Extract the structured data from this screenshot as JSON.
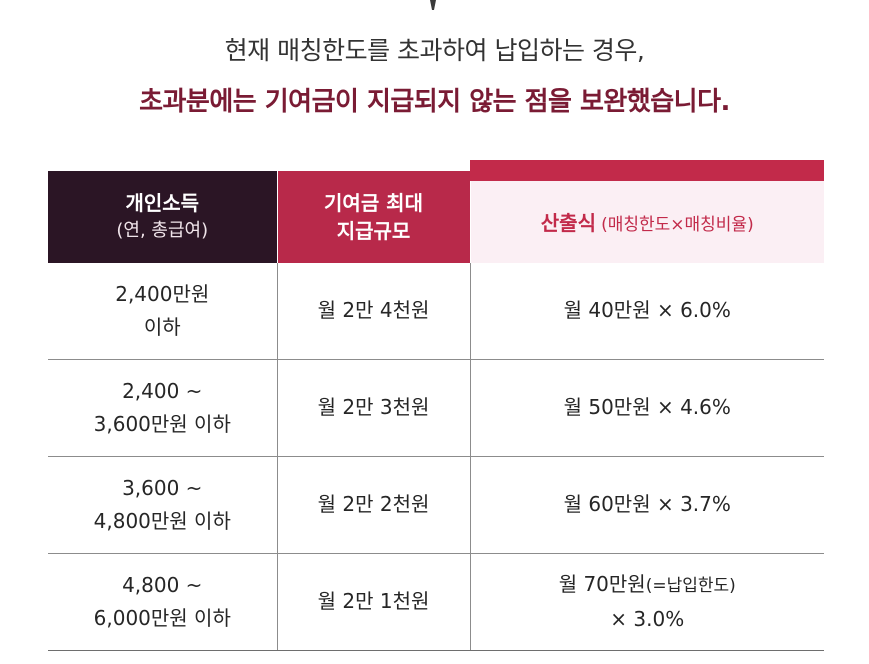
{
  "headline": {
    "line1": "현재 매칭한도를 초과하여 납입하는 경우,",
    "line2": "초과분에는 기여금이 지급되지 않는 점을 보완했습니다."
  },
  "table": {
    "headers": {
      "income_main": "개인소득",
      "income_sub": "(연, 총급여)",
      "max_line1": "기여금 최대",
      "max_line2": "지급규모",
      "formula_title": "산출식",
      "formula_note": "(매칭한도×매칭비율)"
    },
    "rows": [
      {
        "income_line1": "2,400만원",
        "income_line2": "이하",
        "max": "월 2만 4천원",
        "formula_line1": "월 40만원 × 6.0%",
        "formula_note": "",
        "formula_line2": ""
      },
      {
        "income_line1": "2,400 ~",
        "income_line2": "3,600만원 이하",
        "max": "월 2만 3천원",
        "formula_line1": "월 50만원 × 4.6%",
        "formula_note": "",
        "formula_line2": ""
      },
      {
        "income_line1": "3,600 ~",
        "income_line2": "4,800만원 이하",
        "max": "월 2만 2천원",
        "formula_line1": "월 60만원 × 3.7%",
        "formula_note": "",
        "formula_line2": ""
      },
      {
        "income_line1": "4,800 ~",
        "income_line2": "6,000만원 이하",
        "max": "월 2만 1천원",
        "formula_line1": "월 70만원",
        "formula_note": "(=납입한도)",
        "formula_line2": "× 3.0%"
      }
    ]
  },
  "colors": {
    "accent": "#7a1b34",
    "income_header_bg": "#2b1525",
    "max_header_bg": "#b8294a",
    "formula_header_bar": "#c22a4a",
    "formula_header_bg": "#fbeff4"
  }
}
